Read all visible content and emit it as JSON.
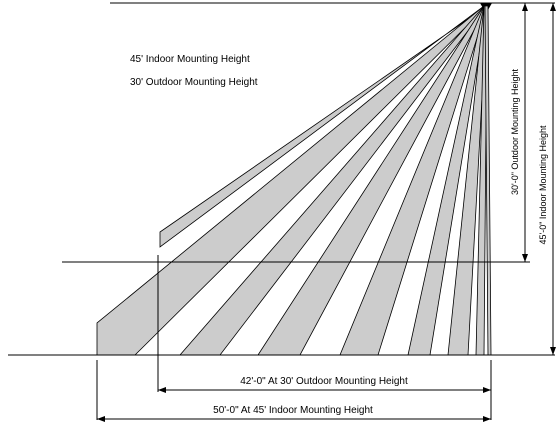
{
  "legend": {
    "indoor": "45' Indoor Mounting Height",
    "outdoor": "30' Outdoor Mounting Height"
  },
  "dimensions": {
    "outdoor_height": "30'-0\" Outdoor Mounting Height",
    "indoor_height": "45'-0\" Indoor Mounting Height",
    "outdoor_range": "42'-0\"   At 30' Outdoor Mounting Height",
    "indoor_range": "50'-0\"   At 45' Indoor Mounting Height"
  },
  "colors": {
    "zone_fill": "#cccccc",
    "line": "#000000"
  }
}
